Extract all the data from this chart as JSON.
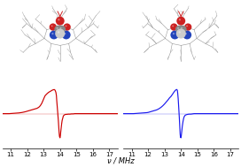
{
  "fig_width": 2.72,
  "fig_height": 1.89,
  "dpi": 100,
  "background_color": "#ffffff",
  "x_range": [
    10.5,
    17.5
  ],
  "x_ticks": [
    11,
    12,
    13,
    14,
    15,
    16,
    17
  ],
  "xlabel": "ν / MHz",
  "xlabel_fontsize": 6.0,
  "tick_fontsize": 5.0,
  "red_color": "#cc0000",
  "blue_color": "#1a1aee",
  "line_width": 0.85,
  "red_x": [
    10.5,
    10.7,
    10.9,
    11.1,
    11.3,
    11.5,
    11.7,
    11.9,
    12.0,
    12.1,
    12.2,
    12.3,
    12.4,
    12.5,
    12.6,
    12.65,
    12.7,
    12.75,
    12.8,
    12.85,
    12.9,
    12.95,
    13.0,
    13.05,
    13.1,
    13.2,
    13.3,
    13.4,
    13.5,
    13.55,
    13.6,
    13.65,
    13.7,
    13.75,
    13.78,
    13.8,
    13.83,
    13.86,
    13.9,
    13.93,
    13.95,
    13.97,
    14.0,
    14.02,
    14.04,
    14.07,
    14.1,
    14.13,
    14.17,
    14.2,
    14.25,
    14.3,
    14.35,
    14.4,
    14.5,
    14.6,
    14.7,
    14.8,
    14.9,
    15.0,
    15.2,
    15.5,
    16.0,
    16.5,
    17.0,
    17.5
  ],
  "red_y": [
    0.0,
    0.0,
    0.0,
    0.01,
    0.02,
    0.03,
    0.05,
    0.08,
    0.1,
    0.12,
    0.14,
    0.16,
    0.18,
    0.2,
    0.22,
    0.24,
    0.26,
    0.29,
    0.33,
    0.38,
    0.44,
    0.52,
    0.6,
    0.68,
    0.75,
    0.82,
    0.88,
    0.92,
    0.96,
    0.98,
    0.99,
    1.0,
    0.97,
    0.88,
    0.75,
    0.55,
    0.3,
    0.05,
    -0.3,
    -0.62,
    -0.82,
    -0.95,
    -1.0,
    -0.92,
    -0.78,
    -0.6,
    -0.42,
    -0.28,
    -0.18,
    -0.1,
    -0.06,
    -0.04,
    -0.03,
    -0.03,
    -0.02,
    -0.02,
    -0.01,
    -0.01,
    0.0,
    0.0,
    0.0,
    0.0,
    0.0,
    0.0,
    0.0,
    0.0
  ],
  "blue_x": [
    10.5,
    10.7,
    10.9,
    11.1,
    11.3,
    11.5,
    11.7,
    11.9,
    12.0,
    12.1,
    12.2,
    12.3,
    12.4,
    12.5,
    12.6,
    12.7,
    12.8,
    12.9,
    13.0,
    13.1,
    13.2,
    13.3,
    13.4,
    13.45,
    13.5,
    13.55,
    13.6,
    13.65,
    13.7,
    13.75,
    13.78,
    13.8,
    13.83,
    13.86,
    13.9,
    13.93,
    13.95,
    13.97,
    14.0,
    14.02,
    14.05,
    14.08,
    14.12,
    14.16,
    14.2,
    14.25,
    14.3,
    14.4,
    14.5,
    14.6,
    14.7,
    14.8,
    14.9,
    15.0,
    15.2,
    15.5,
    16.0,
    16.5,
    17.0,
    17.5
  ],
  "blue_y": [
    0.0,
    0.0,
    0.0,
    0.0,
    0.01,
    0.02,
    0.03,
    0.04,
    0.05,
    0.07,
    0.09,
    0.11,
    0.13,
    0.15,
    0.18,
    0.22,
    0.27,
    0.33,
    0.4,
    0.48,
    0.56,
    0.65,
    0.72,
    0.77,
    0.82,
    0.87,
    0.92,
    0.96,
    0.99,
    1.0,
    0.96,
    0.85,
    0.62,
    0.28,
    -0.18,
    -0.58,
    -0.85,
    -0.98,
    -1.0,
    -0.9,
    -0.72,
    -0.52,
    -0.34,
    -0.2,
    -0.12,
    -0.07,
    -0.05,
    -0.03,
    -0.02,
    -0.02,
    -0.01,
    0.0,
    0.0,
    0.0,
    0.0,
    0.0,
    0.0,
    0.0,
    0.0,
    0.0
  ],
  "mol_red": "#cc2222",
  "mol_blue": "#2244bb",
  "mol_grey": "#888888",
  "mol_lightgrey": "#cccccc",
  "mol_darkgrey": "#555555",
  "mol_white": "#e8e8e8",
  "mol_stick": "#999999"
}
